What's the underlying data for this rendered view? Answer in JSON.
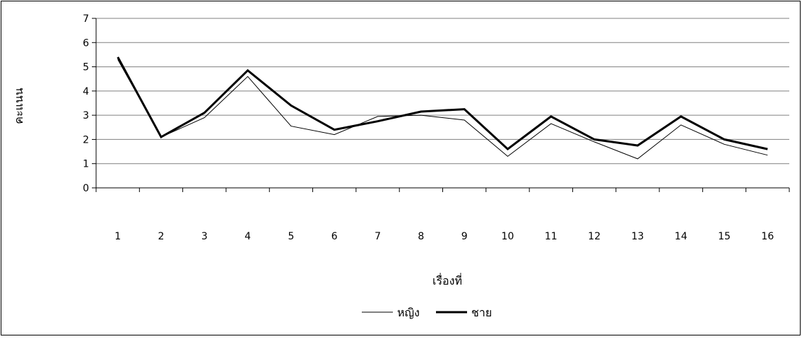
{
  "chart_data": {
    "type": "line",
    "title": "",
    "xlabel": "เรื่องที่",
    "ylabel": "คะแนน",
    "ylim": [
      0,
      7
    ],
    "yticks": [
      0,
      1,
      2,
      3,
      4,
      5,
      6,
      7
    ],
    "grid": true,
    "legend_position": "bottom",
    "categories": [
      "1",
      "2",
      "3",
      "4",
      "5",
      "6",
      "7",
      "8",
      "9",
      "10",
      "11",
      "12",
      "13",
      "14",
      "15",
      "16"
    ],
    "series": [
      {
        "name": "หญิง",
        "color": "#000000",
        "values": [
          5.3,
          2.1,
          2.9,
          4.6,
          2.55,
          2.2,
          2.95,
          3.0,
          2.8,
          1.3,
          2.65,
          1.9,
          1.2,
          2.6,
          1.8,
          1.35
        ]
      },
      {
        "name": "ชาย",
        "color": "#000000",
        "values": [
          5.4,
          2.1,
          3.1,
          4.85,
          3.4,
          2.4,
          2.75,
          3.15,
          3.25,
          1.6,
          2.95,
          2.0,
          1.75,
          2.95,
          2.0,
          1.6
        ]
      }
    ]
  }
}
